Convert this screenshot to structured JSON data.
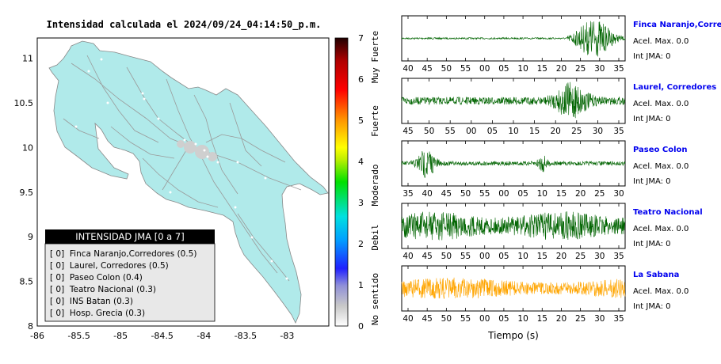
{
  "map": {
    "title": "Intensidad calculada el 2024/09/24_04:14:50_p.m.",
    "x_ticks": [
      "-86",
      "-85.5",
      "-85",
      "-84.5",
      "-84",
      "-83.5",
      "-83"
    ],
    "y_ticks": [
      "8",
      "8.5",
      "9",
      "9.5",
      "10",
      "10.5",
      "11"
    ],
    "xlim": [
      -86,
      -82.5
    ],
    "ylim": [
      8,
      11.35
    ],
    "land_color": "#b0eaea",
    "legend": {
      "title": "INTENSIDAD JMA [0 a 7]",
      "items": [
        "[ 0]  Finca Naranjo,Corredores (0.5)",
        "[ 0]  Laurel, Corredores (0.5)",
        "[ 0]  Paseo Colon (0.4)",
        "[ 0]  Teatro Nacional (0.3)",
        "[ 0]  INS Batan (0.3)",
        "[ 0]  Hosp. Grecia (0.3)"
      ]
    }
  },
  "colorbar": {
    "ticks": [
      "0",
      "1",
      "2",
      "3",
      "4",
      "5",
      "6",
      "7"
    ],
    "labels": [
      "No sentido",
      "Debil",
      "Moderado",
      "Fuerte",
      "Muy Fuerte"
    ],
    "range": [
      0,
      7
    ]
  },
  "chart_data": [
    {
      "type": "line",
      "station": "Finca Naranjo,Corredores",
      "accel_label": "Acel. Max. 0.0",
      "int_label": "Int JMA: 0",
      "color": "#006400",
      "x_ticks": [
        "40",
        "45",
        "50",
        "55",
        "00",
        "05",
        "10",
        "15",
        "20",
        "25",
        "30",
        "35"
      ]
    },
    {
      "type": "line",
      "station": "Laurel, Corredores",
      "accel_label": "Acel. Max. 0.0",
      "int_label": "Int JMA: 0",
      "color": "#006400",
      "x_ticks": [
        "45",
        "50",
        "55",
        "00",
        "05",
        "10",
        "15",
        "20",
        "25",
        "30",
        "35"
      ]
    },
    {
      "type": "line",
      "station": "Paseo Colon",
      "accel_label": "Acel. Max. 0.0",
      "int_label": "Int JMA: 0",
      "color": "#006400",
      "x_ticks": [
        "35",
        "40",
        "45",
        "50",
        "55",
        "00",
        "05",
        "10",
        "15",
        "20",
        "25",
        "30"
      ]
    },
    {
      "type": "line",
      "station": "Teatro Nacional",
      "accel_label": "Acel. Max. 0.0",
      "int_label": "Int JMA: 0",
      "color": "#006400",
      "x_ticks": [
        "40",
        "45",
        "50",
        "55",
        "00",
        "05",
        "10",
        "15",
        "20",
        "25",
        "30",
        "35"
      ]
    },
    {
      "type": "line",
      "station": "La Sabana",
      "accel_label": "Acel. Max. 0.0",
      "int_label": "Int JMA: 0",
      "color": "#ffa500",
      "x_ticks": [
        "40",
        "45",
        "50",
        "55",
        "00",
        "05",
        "10",
        "15",
        "20",
        "25",
        "30",
        "35"
      ]
    }
  ],
  "traces_xlabel": "Tiempo (s)"
}
